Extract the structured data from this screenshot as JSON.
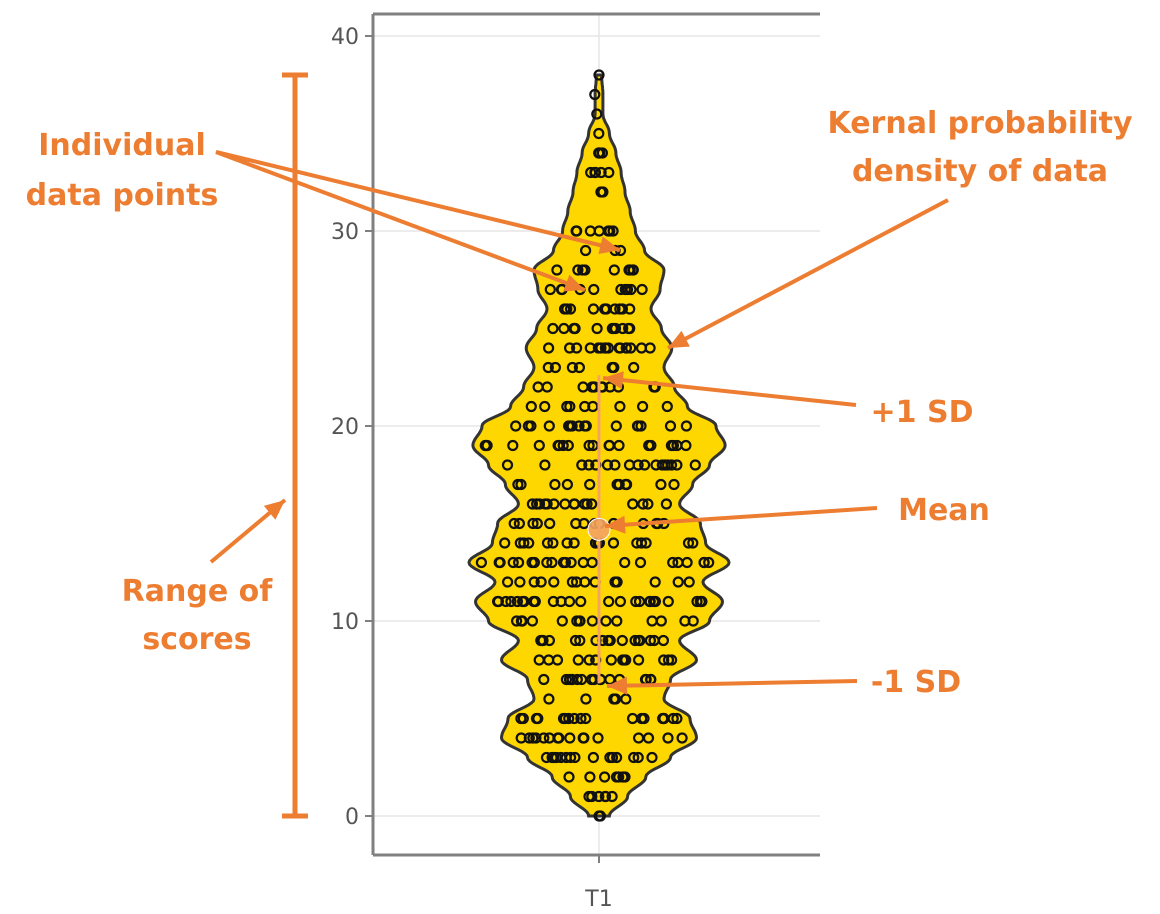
{
  "chart_data": {
    "type": "violin",
    "categories": [
      "T1"
    ],
    "x_tick_labels": [
      "T1"
    ],
    "y_ticks": [
      0,
      10,
      20,
      30,
      40
    ],
    "y_tick_labels": [
      "0",
      "10",
      "20",
      "30",
      "40"
    ],
    "ylim": [
      -2,
      41
    ],
    "grid": true,
    "series": [
      {
        "category": "T1",
        "min": 0,
        "max": 38,
        "mean": 14.7,
        "plus_1_sd": 22.6,
        "minus_1_sd": 6.8,
        "density_profile": [
          {
            "y": 0,
            "half_width": 0.08
          },
          {
            "y": 1,
            "half_width": 0.22
          },
          {
            "y": 2,
            "half_width": 0.36
          },
          {
            "y": 3,
            "half_width": 0.55
          },
          {
            "y": 4,
            "half_width": 0.75
          },
          {
            "y": 5,
            "half_width": 0.7
          },
          {
            "y": 6,
            "half_width": 0.5
          },
          {
            "y": 7,
            "half_width": 0.55
          },
          {
            "y": 8,
            "half_width": 0.75
          },
          {
            "y": 9,
            "half_width": 0.62
          },
          {
            "y": 10,
            "half_width": 0.85
          },
          {
            "y": 11,
            "half_width": 0.95
          },
          {
            "y": 12,
            "half_width": 0.8
          },
          {
            "y": 13,
            "half_width": 1.0
          },
          {
            "y": 14,
            "half_width": 0.82
          },
          {
            "y": 15,
            "half_width": 0.78
          },
          {
            "y": 16,
            "half_width": 0.62
          },
          {
            "y": 17,
            "half_width": 0.72
          },
          {
            "y": 18,
            "half_width": 0.85
          },
          {
            "y": 19,
            "half_width": 0.97
          },
          {
            "y": 20,
            "half_width": 0.9
          },
          {
            "y": 21,
            "half_width": 0.68
          },
          {
            "y": 22,
            "half_width": 0.58
          },
          {
            "y": 23,
            "half_width": 0.5
          },
          {
            "y": 24,
            "half_width": 0.56
          },
          {
            "y": 25,
            "half_width": 0.48
          },
          {
            "y": 26,
            "half_width": 0.4
          },
          {
            "y": 27,
            "half_width": 0.47
          },
          {
            "y": 28,
            "half_width": 0.5
          },
          {
            "y": 29,
            "half_width": 0.35
          },
          {
            "y": 30,
            "half_width": 0.28
          },
          {
            "y": 31,
            "half_width": 0.24
          },
          {
            "y": 32,
            "half_width": 0.2
          },
          {
            "y": 33,
            "half_width": 0.17
          },
          {
            "y": 34,
            "half_width": 0.13
          },
          {
            "y": 35,
            "half_width": 0.08
          },
          {
            "y": 36,
            "half_width": 0.03
          },
          {
            "y": 37,
            "half_width": 0.03
          },
          {
            "y": 38,
            "half_width": 0.02
          }
        ],
        "point_count": 420
      }
    ],
    "annotations": [
      {
        "id": "data-points",
        "lines": [
          "Individual",
          "data points"
        ]
      },
      {
        "id": "density",
        "lines": [
          "Kernal probability",
          "density of data"
        ]
      },
      {
        "id": "plus-sd",
        "lines": [
          "+1 SD"
        ]
      },
      {
        "id": "mean",
        "lines": [
          "Mean"
        ]
      },
      {
        "id": "minus-sd",
        "lines": [
          "-1 SD"
        ]
      },
      {
        "id": "range",
        "lines": [
          "Range of",
          "scores"
        ]
      }
    ]
  },
  "colors": {
    "violin_fill": "#FFD700",
    "violin_outline": "#333333",
    "points": "#111111",
    "annotation": "#ED7D31",
    "mean_marker": "#F4A460",
    "grid": "#E6E6E6",
    "axis": "#808080"
  }
}
